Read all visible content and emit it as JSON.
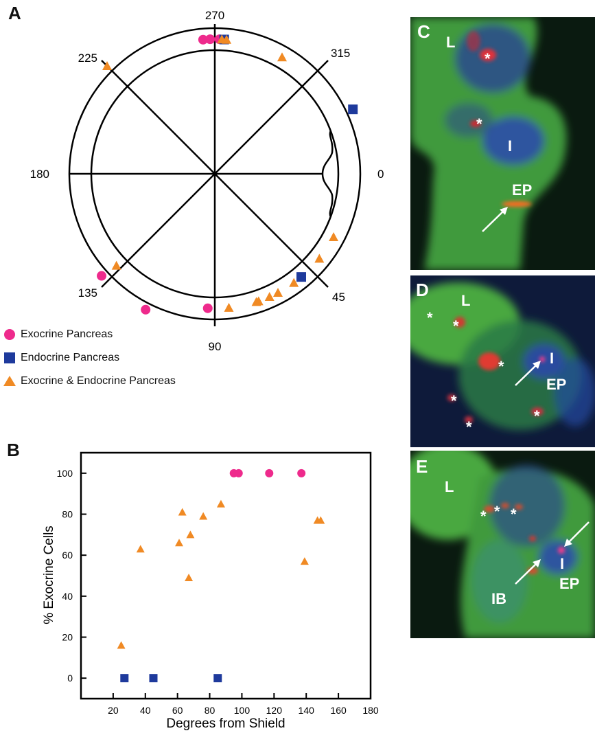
{
  "panels": {
    "a": "A",
    "b": "B",
    "c": "C",
    "d": "D",
    "e": "E"
  },
  "polar": {
    "angle_labels": [
      "270",
      "315",
      "0",
      "45",
      "90",
      "135",
      "180",
      "225"
    ],
    "exocrine_points": [
      [
        265,
        0
      ],
      [
        268,
        0
      ],
      [
        272,
        0
      ],
      [
        138,
        1
      ],
      [
        117,
        1
      ],
      [
        93,
        0
      ]
    ],
    "endocrine_points": [
      [
        274,
        0
      ],
      [
        335,
        1
      ],
      [
        50,
        0
      ]
    ],
    "both_points": [
      [
        273,
        0
      ],
      [
        275,
        0
      ],
      [
        300,
        0
      ],
      [
        225,
        1
      ],
      [
        28,
        0
      ],
      [
        39,
        0
      ],
      [
        54,
        0
      ],
      [
        62,
        0
      ],
      [
        66,
        0
      ],
      [
        71,
        0
      ],
      [
        72,
        0
      ],
      [
        84,
        0
      ],
      [
        137,
        0
      ]
    ]
  },
  "legend": {
    "exocrine": "Exocrine Pancreas",
    "endocrine": "Endocrine Pancreas",
    "both": "Exocrine & Endocrine Pancreas"
  },
  "colors": {
    "exocrine": "#ee2a8c",
    "endocrine": "#1e3a9c",
    "both": "#f08a24"
  },
  "chart_data": {
    "type": "scatter",
    "xlabel": "Degrees from Shield",
    "ylabel": "% Exocrine Cells",
    "xlim": [
      0,
      180
    ],
    "ylim": [
      -10,
      110
    ],
    "xticks": [
      "20",
      "40",
      "60",
      "80",
      "100",
      "120",
      "140",
      "160",
      "180"
    ],
    "yticks": [
      "0",
      "20",
      "40",
      "60",
      "80",
      "100"
    ],
    "series": [
      {
        "name": "Exocrine Pancreas",
        "marker": "circle",
        "x": [
          95,
          98,
          117,
          137
        ],
        "y": [
          100,
          100,
          100,
          100
        ]
      },
      {
        "name": "Endocrine Pancreas",
        "marker": "square",
        "x": [
          27,
          45,
          85
        ],
        "y": [
          0,
          0,
          0
        ]
      },
      {
        "name": "Exocrine & Endocrine Pancreas",
        "marker": "triangle",
        "x": [
          25,
          37,
          61,
          63,
          67,
          68,
          76,
          87,
          139,
          147,
          149
        ],
        "y": [
          16,
          63,
          66,
          81,
          49,
          70,
          79,
          85,
          57,
          77,
          77
        ]
      }
    ]
  },
  "micro_c": {
    "labels": {
      "L": "L",
      "I": "I",
      "EP": "EP"
    },
    "asterisk": "*"
  },
  "micro_d": {
    "labels": {
      "L": "L",
      "I": "I",
      "EP": "EP"
    },
    "asterisk": "*"
  },
  "micro_e": {
    "labels": {
      "L": "L",
      "I": "I",
      "EP": "EP",
      "IB": "IB"
    },
    "asterisk": "*"
  }
}
